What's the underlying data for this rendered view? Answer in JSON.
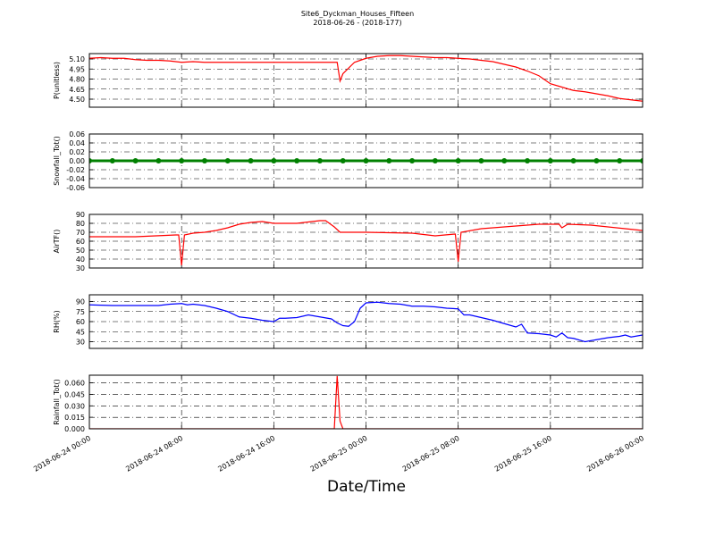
{
  "chart_data": [
    {
      "type": "line",
      "title": "Site6_Dyckman_Houses_Fifteen",
      "subtitle": "2018-06-26 - (2018-177)",
      "ylabel": "P(unitless)",
      "xlim": [
        "2018-06-24 00:00",
        "2018-06-26 00:00"
      ],
      "xticks": [
        "2018-06-24 00:00",
        "2018-06-24 08:00",
        "2018-06-24 16:00",
        "2018-06-25 00:00",
        "2018-06-25 08:00",
        "2018-06-25 16:00",
        "2018-06-26 00:00"
      ],
      "ylim": [
        4.38,
        5.18
      ],
      "yticks": [
        {
          "value": 4.5,
          "label": "4.50"
        },
        4.65,
        {
          "value": 4.8,
          "label": "4.80"
        },
        4.95,
        {
          "value": 5.1,
          "label": "5.10"
        }
      ],
      "grid": true,
      "x": [
        "2018-06-24 00:00",
        "2018-06-24 01:00",
        "2018-06-24 02:00",
        "2018-06-24 03:00",
        "2018-06-24 04:00",
        "2018-06-24 05:00",
        "2018-06-24 06:00",
        "2018-06-24 07:00",
        "2018-06-24 08:00",
        "2018-06-24 09:00",
        "2018-06-24 10:00",
        "2018-06-24 12:00",
        "2018-06-24 14:00",
        "2018-06-24 16:00",
        "2018-06-24 18:00",
        "2018-06-24 20:00",
        "2018-06-24 21:30",
        "2018-06-24 21:45",
        "2018-06-24 22:00",
        "2018-06-24 23:00",
        "2018-06-25 00:00",
        "2018-06-25 01:00",
        "2018-06-25 02:00",
        "2018-06-25 03:00",
        "2018-06-25 04:00",
        "2018-06-25 05:00",
        "2018-06-25 06:00",
        "2018-06-25 07:00",
        "2018-06-25 08:00",
        "2018-06-25 09:00",
        "2018-06-25 10:00",
        "2018-06-25 11:00",
        "2018-06-25 12:00",
        "2018-06-25 13:00",
        "2018-06-25 14:00",
        "2018-06-25 15:00",
        "2018-06-25 16:00",
        "2018-06-25 17:00",
        "2018-06-25 18:00",
        "2018-06-25 19:00",
        "2018-06-25 20:00",
        "2018-06-25 21:00",
        "2018-06-25 22:00",
        "2018-06-25 23:00",
        "2018-06-26 00:00"
      ],
      "series": [
        {
          "color": "#ff0000",
          "values": [
            5.11,
            5.12,
            5.11,
            5.11,
            5.09,
            5.08,
            5.08,
            5.07,
            5.05,
            5.06,
            5.05,
            5.05,
            5.05,
            5.05,
            5.05,
            5.05,
            5.05,
            4.77,
            4.88,
            5.05,
            5.11,
            5.14,
            5.15,
            5.15,
            5.14,
            5.13,
            5.12,
            5.12,
            5.11,
            5.1,
            5.08,
            5.06,
            5.02,
            4.98,
            4.92,
            4.85,
            4.73,
            4.68,
            4.63,
            4.61,
            4.58,
            4.55,
            4.51,
            4.49,
            4.47
          ]
        }
      ]
    },
    {
      "type": "line",
      "ylabel": "Snowfall_Tot()",
      "xlim": [
        "2018-06-24 00:00",
        "2018-06-26 00:00"
      ],
      "xticks": [
        "2018-06-24 00:00",
        "2018-06-24 08:00",
        "2018-06-24 16:00",
        "2018-06-25 00:00",
        "2018-06-25 08:00",
        "2018-06-25 16:00",
        "2018-06-26 00:00"
      ],
      "ylim": [
        -0.06,
        0.06
      ],
      "yticks": [
        -0.06,
        -0.04,
        -0.02,
        {
          "value": 0,
          "label": "0.00"
        },
        0.02,
        0.04,
        0.06
      ],
      "grid": true,
      "markers": true,
      "x": [
        "2018-06-24 00:00",
        "2018-06-24 02:00",
        "2018-06-24 04:00",
        "2018-06-24 06:00",
        "2018-06-24 08:00",
        "2018-06-24 10:00",
        "2018-06-24 12:00",
        "2018-06-24 14:00",
        "2018-06-24 16:00",
        "2018-06-24 18:00",
        "2018-06-24 20:00",
        "2018-06-24 22:00",
        "2018-06-25 00:00",
        "2018-06-25 02:00",
        "2018-06-25 04:00",
        "2018-06-25 06:00",
        "2018-06-25 08:00",
        "2018-06-25 10:00",
        "2018-06-25 12:00",
        "2018-06-25 14:00",
        "2018-06-25 16:00",
        "2018-06-25 18:00",
        "2018-06-25 20:00",
        "2018-06-25 22:00",
        "2018-06-26 00:00"
      ],
      "series": [
        {
          "color": "#008000",
          "values": [
            0,
            0,
            0,
            0,
            0,
            0,
            0,
            0,
            0,
            0,
            0,
            0,
            0,
            0,
            0,
            0,
            0,
            0,
            0,
            0,
            0,
            0,
            0,
            0,
            0
          ]
        }
      ]
    },
    {
      "type": "line",
      "ylabel": "AirTF()",
      "xlim": [
        "2018-06-24 00:00",
        "2018-06-26 00:00"
      ],
      "xticks": [
        "2018-06-24 00:00",
        "2018-06-24 08:00",
        "2018-06-24 16:00",
        "2018-06-25 00:00",
        "2018-06-25 08:00",
        "2018-06-25 16:00",
        "2018-06-26 00:00"
      ],
      "ylim": [
        30,
        90
      ],
      "yticks": [
        30,
        40,
        50,
        60,
        70,
        80,
        90
      ],
      "grid": true,
      "x": [
        "2018-06-24 00:00",
        "2018-06-24 04:00",
        "2018-06-24 07:30",
        "2018-06-24 07:45",
        "2018-06-24 08:00",
        "2018-06-24 08:15",
        "2018-06-24 09:00",
        "2018-06-24 10:00",
        "2018-06-24 11:00",
        "2018-06-24 12:00",
        "2018-06-24 13:00",
        "2018-06-24 14:00",
        "2018-06-24 15:00",
        "2018-06-24 16:00",
        "2018-06-24 18:00",
        "2018-06-24 20:00",
        "2018-06-24 20:30",
        "2018-06-24 21:15",
        "2018-06-24 21:45",
        "2018-06-25 00:00",
        "2018-06-25 04:00",
        "2018-06-25 06:00",
        "2018-06-25 07:45",
        "2018-06-25 08:00",
        "2018-06-25 08:15",
        "2018-06-25 10:00",
        "2018-06-25 13:00",
        "2018-06-25 15:00",
        "2018-06-25 16:45",
        "2018-06-25 17:00",
        "2018-06-25 17:30",
        "2018-06-25 19:30",
        "2018-06-25 22:30",
        "2018-06-26 00:00"
      ],
      "series": [
        {
          "color": "#ff0000",
          "values": [
            65,
            65,
            67,
            67,
            33,
            67,
            69,
            70,
            72,
            75,
            79,
            81,
            82,
            80,
            80,
            83,
            83,
            76,
            70,
            70,
            69,
            66,
            68,
            37,
            70,
            74,
            77,
            79,
            79,
            75,
            79,
            78,
            74,
            72
          ]
        }
      ]
    },
    {
      "type": "line",
      "ylabel": "RH(%)",
      "xlim": [
        "2018-06-24 00:00",
        "2018-06-26 00:00"
      ],
      "xticks": [
        "2018-06-24 00:00",
        "2018-06-24 08:00",
        "2018-06-24 16:00",
        "2018-06-25 00:00",
        "2018-06-25 08:00",
        "2018-06-25 16:00",
        "2018-06-26 00:00"
      ],
      "ylim": [
        20,
        100
      ],
      "yticks": [
        30,
        45,
        60,
        75,
        90
      ],
      "grid": true,
      "x": [
        "2018-06-24 00:00",
        "2018-06-24 02:00",
        "2018-06-24 04:00",
        "2018-06-24 06:00",
        "2018-06-24 07:00",
        "2018-06-24 08:00",
        "2018-06-24 08:30",
        "2018-06-24 09:00",
        "2018-06-24 10:00",
        "2018-06-24 11:00",
        "2018-06-24 12:00",
        "2018-06-24 13:00",
        "2018-06-24 14:00",
        "2018-06-24 15:00",
        "2018-06-24 16:00",
        "2018-06-24 16:30",
        "2018-06-24 17:00",
        "2018-06-24 18:00",
        "2018-06-24 19:00",
        "2018-06-24 20:00",
        "2018-06-24 21:00",
        "2018-06-24 21:30",
        "2018-06-24 22:00",
        "2018-06-24 22:30",
        "2018-06-24 23:00",
        "2018-06-24 23:30",
        "2018-06-25 00:00",
        "2018-06-25 01:00",
        "2018-06-25 02:00",
        "2018-06-25 03:00",
        "2018-06-25 04:00",
        "2018-06-25 05:00",
        "2018-06-25 06:00",
        "2018-06-25 07:00",
        "2018-06-25 08:00",
        "2018-06-25 08:30",
        "2018-06-25 09:00",
        "2018-06-25 10:00",
        "2018-06-25 11:00",
        "2018-06-25 12:00",
        "2018-06-25 13:00",
        "2018-06-25 13:30",
        "2018-06-25 14:00",
        "2018-06-25 15:00",
        "2018-06-25 16:00",
        "2018-06-25 16:30",
        "2018-06-25 17:00",
        "2018-06-25 17:30",
        "2018-06-25 18:00",
        "2018-06-25 19:00",
        "2018-06-25 20:00",
        "2018-06-25 21:00",
        "2018-06-25 22:00",
        "2018-06-25 22:30",
        "2018-06-25 23:00",
        "2018-06-26 00:00"
      ],
      "series": [
        {
          "color": "#0000ff",
          "values": [
            85,
            84,
            84,
            84,
            86,
            87,
            85,
            86,
            84,
            80,
            75,
            67,
            65,
            62,
            60,
            65,
            65,
            66,
            70,
            67,
            64,
            58,
            54,
            53,
            60,
            80,
            88,
            89,
            87,
            86,
            83,
            83,
            82,
            80,
            79,
            70,
            70,
            66,
            62,
            57,
            52,
            56,
            43,
            42,
            40,
            37,
            43,
            36,
            35,
            30,
            33,
            36,
            38,
            40,
            37,
            40
          ]
        }
      ]
    },
    {
      "type": "line",
      "ylabel": "Rainfall_Tot()",
      "xlabel": "Date/Time",
      "xlim": [
        "2018-06-24 00:00",
        "2018-06-26 00:00"
      ],
      "xticks": [
        "2018-06-24 00:00",
        "2018-06-24 08:00",
        "2018-06-24 16:00",
        "2018-06-25 00:00",
        "2018-06-25 08:00",
        "2018-06-25 16:00",
        "2018-06-26 00:00"
      ],
      "show_xtick_labels": true,
      "ylim": [
        0,
        0.07
      ],
      "yticks": [
        {
          "value": 0,
          "label": "0.000"
        },
        0.015,
        {
          "value": 0.03,
          "label": "0.030"
        },
        0.045,
        {
          "value": 0.06,
          "label": "0.060"
        }
      ],
      "grid": true,
      "x": [
        "2018-06-24 00:00",
        "2018-06-24 08:00",
        "2018-06-24 16:00",
        "2018-06-24 21:00",
        "2018-06-24 21:15",
        "2018-06-24 21:30",
        "2018-06-24 21:45",
        "2018-06-24 22:00",
        "2018-06-25 00:00",
        "2018-06-25 08:00",
        "2018-06-25 16:00",
        "2018-06-26 00:00"
      ],
      "series": [
        {
          "color": "#ff0000",
          "values": [
            0,
            0,
            0,
            0,
            0,
            0.069,
            0.01,
            0,
            0,
            0,
            0,
            0
          ]
        }
      ]
    }
  ]
}
